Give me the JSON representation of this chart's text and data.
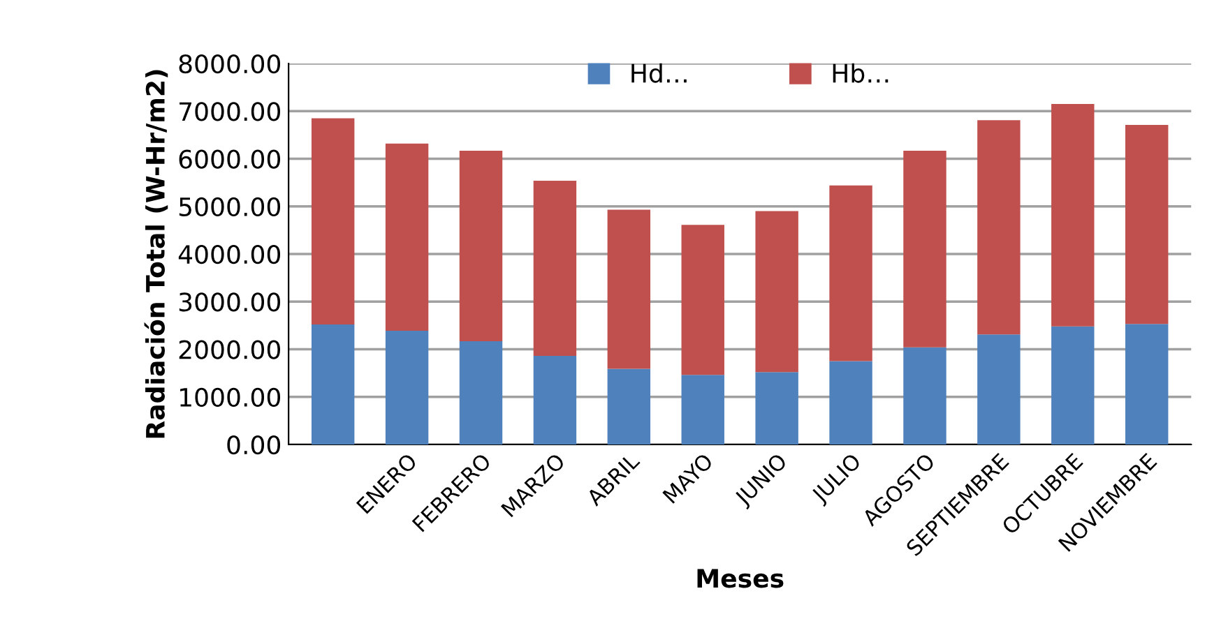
{
  "chart_data": {
    "type": "bar",
    "stacked": true,
    "xlabel": "Meses",
    "ylabel": "Radiación Total (W-Hr/m2)",
    "categories": [
      null,
      "ENERO",
      "FEBRERO",
      "MARZO",
      "ABRIL",
      "MAYO",
      "JUNIO",
      "JULIO",
      "AGOSTO",
      "SEPTIEMBRE",
      "OCTUBRE",
      "NOVIEMBRE"
    ],
    "series": [
      {
        "name": "Hd…",
        "color": "#4f81bd",
        "values": [
          2520,
          2390,
          2170,
          1860,
          1590,
          1460,
          1520,
          1750,
          2040,
          2310,
          2480,
          2530
        ]
      },
      {
        "name": "Hb…",
        "color": "#c0504d",
        "values": [
          4330,
          3930,
          4000,
          3680,
          3340,
          3150,
          3380,
          3690,
          4130,
          4500,
          4670,
          4180
        ]
      }
    ],
    "ylim": [
      0,
      8000
    ],
    "yticks": [
      {
        "value": 0,
        "label": "0.00"
      },
      {
        "value": 1000,
        "label": "1000.00"
      },
      {
        "value": 2000,
        "label": "2000.00"
      },
      {
        "value": 3000,
        "label": "3000.00"
      },
      {
        "value": 4000,
        "label": "4000.00"
      },
      {
        "value": 5000,
        "label": "5000.00"
      },
      {
        "value": 6000,
        "label": "6000.00"
      },
      {
        "value": 7000,
        "label": "7000.00"
      },
      {
        "value": 8000,
        "label": "8000.00"
      }
    ],
    "grid": "y",
    "legend": "top"
  }
}
